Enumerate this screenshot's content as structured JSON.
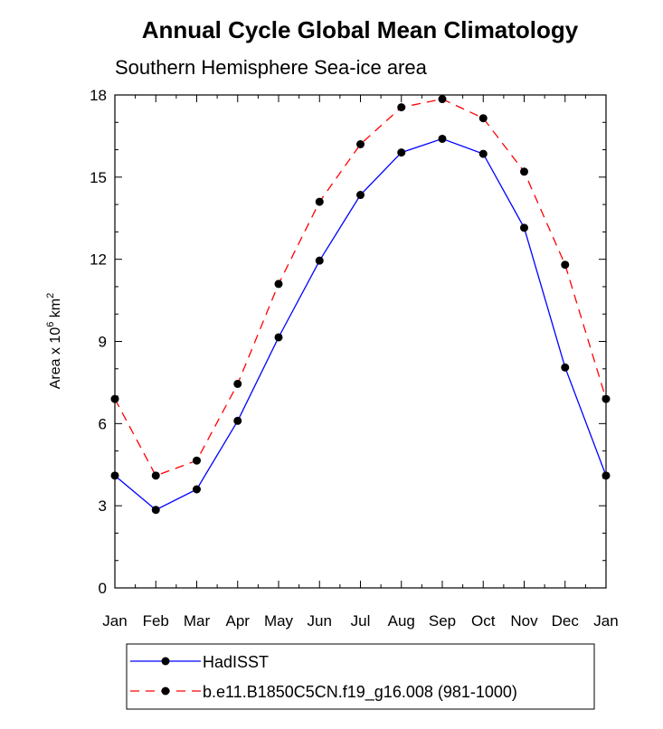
{
  "chart_data": {
    "type": "line",
    "title": "Annual Cycle Global Mean Climatology",
    "subtitle": "Southern Hemisphere Sea-ice area",
    "xlabel": "",
    "ylabel_main": "Area x 10",
    "ylabel_exp": "6",
    "ylabel_unit": " km",
    "ylabel_unit_exp": "2",
    "categories": [
      "Jan",
      "Feb",
      "Mar",
      "Apr",
      "May",
      "Jun",
      "Jul",
      "Aug",
      "Sep",
      "Oct",
      "Nov",
      "Dec",
      "Jan"
    ],
    "ylim": [
      0,
      18
    ],
    "yticks": [
      0,
      3,
      6,
      9,
      12,
      15,
      18
    ],
    "series": [
      {
        "name": "HadISST",
        "color": "#0000ff",
        "dash": "solid",
        "marker": "circle",
        "values": [
          4.1,
          2.85,
          3.6,
          6.1,
          9.15,
          11.95,
          14.35,
          15.9,
          16.4,
          15.85,
          13.15,
          8.05,
          4.1
        ]
      },
      {
        "name": "b.e11.B1850C5CN.f19_g16.008 (981-1000)",
        "color": "#ff0000",
        "dash": "dashed",
        "marker": "circle",
        "values": [
          6.9,
          4.1,
          4.65,
          7.45,
          11.1,
          14.1,
          16.2,
          17.55,
          17.85,
          17.15,
          15.2,
          11.8,
          6.9
        ]
      }
    ],
    "legend_position": "bottom"
  }
}
